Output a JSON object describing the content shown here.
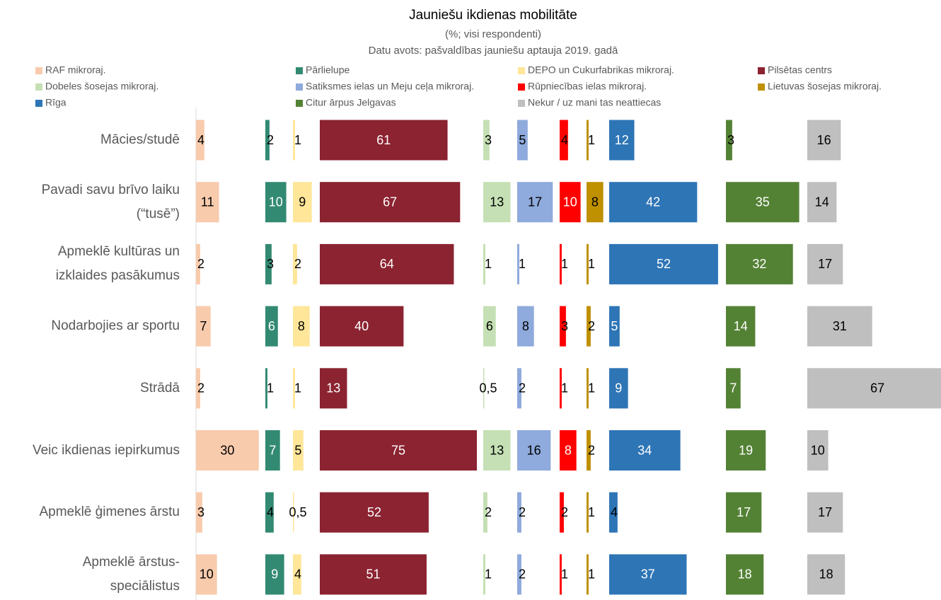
{
  "chart_data": {
    "type": "bar",
    "orientation": "horizontal",
    "title": "Jauniešu ikdienas mobilitāte",
    "subtitle": "(%; visi respondenti)",
    "source": "Datu avots: pašvaldības jauniešu aptauja 2019. gadā",
    "categories": [
      "Mācies/studē",
      "Pavadi savu brīvo laiku\n(“tusē”)",
      "Apmeklē kultūras un\nizklaides pasākumus",
      "Nodarbojies ar sportu",
      "Strādā",
      "Veic ikdienas iepirkumus",
      "Apmeklē ģimenes ārstu",
      "Apmeklē ārstus-\nspeciālistus"
    ],
    "series": [
      {
        "name": "RAF mikroraj.",
        "color": "#f8cbad",
        "values": [
          4,
          11,
          2,
          7,
          2,
          30,
          3,
          10
        ]
      },
      {
        "name": "Pārlielupe",
        "color": "#338a72",
        "values": [
          2,
          10,
          3,
          6,
          1,
          7,
          4,
          9
        ]
      },
      {
        "name": "DEPO un Cukurfabrikas mikroraj.",
        "color": "#ffe699",
        "values": [
          1,
          9,
          2,
          8,
          1,
          5,
          0.5,
          4
        ],
        "value_labels": [
          "1",
          "9",
          "2",
          "8",
          "1",
          "5",
          "0,5",
          "4"
        ]
      },
      {
        "name": "Pilsētas centrs",
        "color": "#8b2331",
        "values": [
          61,
          67,
          64,
          40,
          13,
          75,
          52,
          51
        ]
      },
      {
        "name": "Dobeles šosejas mikroraj.",
        "color": "#c5e0b4",
        "values": [
          3,
          13,
          1,
          6,
          0.5,
          13,
          2,
          1
        ],
        "value_labels": [
          "3",
          "13",
          "1",
          "6",
          "0,5",
          "13",
          "2",
          "1"
        ]
      },
      {
        "name": "Satiksmes ielas un Meju ceļa mikroraj.",
        "color": "#8faadc",
        "values": [
          5,
          17,
          1,
          8,
          2,
          16,
          2,
          2
        ]
      },
      {
        "name": "Rūpniecības ielas mikroraj.",
        "color": "#ff0000",
        "values": [
          4,
          10,
          1,
          3,
          1,
          8,
          2,
          1
        ]
      },
      {
        "name": "Lietuvas šosejas mikroraj.",
        "color": "#bf9000",
        "values": [
          1,
          8,
          1,
          2,
          1,
          2,
          1,
          1
        ]
      },
      {
        "name": "Rīga",
        "color": "#2e75b6",
        "values": [
          12,
          42,
          52,
          5,
          9,
          34,
          4,
          37
        ]
      },
      {
        "name": "Citur ārpus Jelgavas",
        "color": "#548235",
        "values": [
          3,
          35,
          32,
          14,
          7,
          19,
          17,
          18
        ]
      },
      {
        "name": "Nekur / uz mani tas neattiecas",
        "color": "#bfbfbf",
        "values": [
          16,
          14,
          17,
          31,
          67,
          10,
          17,
          18
        ]
      }
    ]
  }
}
